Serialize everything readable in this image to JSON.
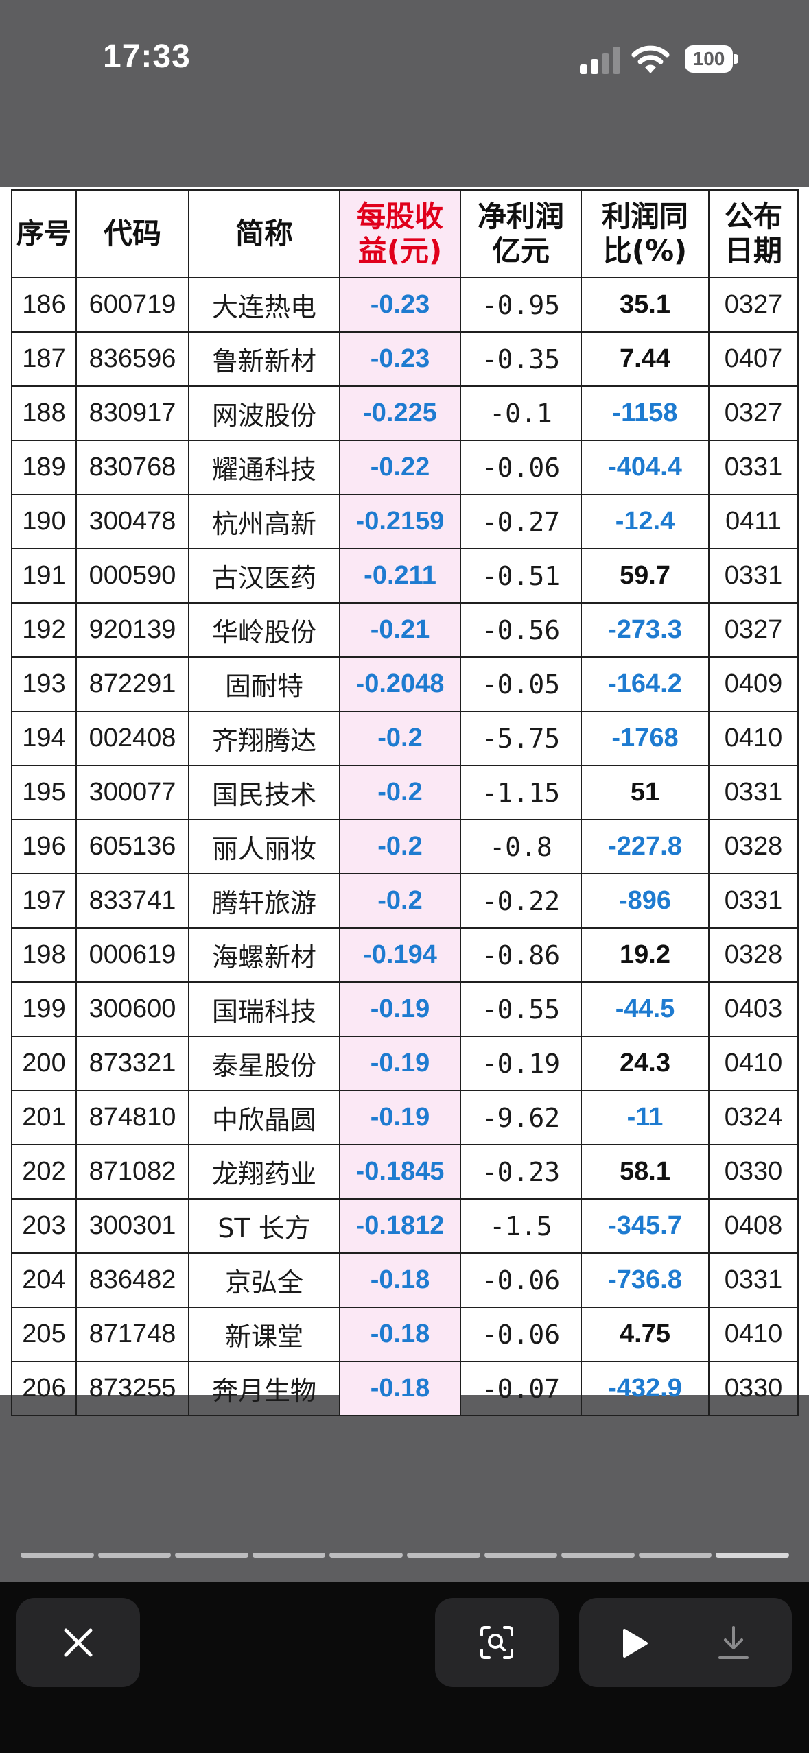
{
  "status_bar": {
    "time": "17:33",
    "battery_level": "100",
    "signal_bars_active": 2,
    "signal_bars_total": 4
  },
  "table": {
    "headers": [
      {
        "key": "seq",
        "label": "序号"
      },
      {
        "key": "code",
        "label": "代码"
      },
      {
        "key": "name",
        "label": "简称"
      },
      {
        "key": "eps",
        "label": "每股收益(元)"
      },
      {
        "key": "net_profit",
        "label": "净利润亿元"
      },
      {
        "key": "yoy",
        "label": "利润同比(%)"
      },
      {
        "key": "date",
        "label": "公布日期"
      }
    ],
    "rows": [
      {
        "seq": "186",
        "code": "600719",
        "name": "大连热电",
        "eps": "-0.23",
        "net_profit": "-0.95",
        "yoy": "35.1",
        "date": "0327"
      },
      {
        "seq": "187",
        "code": "836596",
        "name": "鲁新新材",
        "eps": "-0.23",
        "net_profit": "-0.35",
        "yoy": "7.44",
        "date": "0407"
      },
      {
        "seq": "188",
        "code": "830917",
        "name": "网波股份",
        "eps": "-0.225",
        "net_profit": "-0.1",
        "yoy": "-1158",
        "date": "0327"
      },
      {
        "seq": "189",
        "code": "830768",
        "name": "耀通科技",
        "eps": "-0.22",
        "net_profit": "-0.06",
        "yoy": "-404.4",
        "date": "0331"
      },
      {
        "seq": "190",
        "code": "300478",
        "name": "杭州高新",
        "eps": "-0.2159",
        "net_profit": "-0.27",
        "yoy": "-12.4",
        "date": "0411"
      },
      {
        "seq": "191",
        "code": "000590",
        "name": "古汉医药",
        "eps": "-0.211",
        "net_profit": "-0.51",
        "yoy": "59.7",
        "date": "0331"
      },
      {
        "seq": "192",
        "code": "920139",
        "name": "华岭股份",
        "eps": "-0.21",
        "net_profit": "-0.56",
        "yoy": "-273.3",
        "date": "0327"
      },
      {
        "seq": "193",
        "code": "872291",
        "name": "固耐特",
        "eps": "-0.2048",
        "net_profit": "-0.05",
        "yoy": "-164.2",
        "date": "0409"
      },
      {
        "seq": "194",
        "code": "002408",
        "name": "齐翔腾达",
        "eps": "-0.2",
        "net_profit": "-5.75",
        "yoy": "-1768",
        "date": "0410"
      },
      {
        "seq": "195",
        "code": "300077",
        "name": "国民技术",
        "eps": "-0.2",
        "net_profit": "-1.15",
        "yoy": "51",
        "date": "0331"
      },
      {
        "seq": "196",
        "code": "605136",
        "name": "丽人丽妆",
        "eps": "-0.2",
        "net_profit": "-0.8",
        "yoy": "-227.8",
        "date": "0328"
      },
      {
        "seq": "197",
        "code": "833741",
        "name": "腾轩旅游",
        "eps": "-0.2",
        "net_profit": "-0.22",
        "yoy": "-896",
        "date": "0331"
      },
      {
        "seq": "198",
        "code": "000619",
        "name": "海螺新材",
        "eps": "-0.194",
        "net_profit": "-0.86",
        "yoy": "19.2",
        "date": "0328"
      },
      {
        "seq": "199",
        "code": "300600",
        "name": "国瑞科技",
        "eps": "-0.19",
        "net_profit": "-0.55",
        "yoy": "-44.5",
        "date": "0403"
      },
      {
        "seq": "200",
        "code": "873321",
        "name": "泰星股份",
        "eps": "-0.19",
        "net_profit": "-0.19",
        "yoy": "24.3",
        "date": "0410"
      },
      {
        "seq": "201",
        "code": "874810",
        "name": "中欣晶圆",
        "eps": "-0.19",
        "net_profit": "-9.62",
        "yoy": "-11",
        "date": "0324"
      },
      {
        "seq": "202",
        "code": "871082",
        "name": "龙翔药业",
        "eps": "-0.1845",
        "net_profit": "-0.23",
        "yoy": "58.1",
        "date": "0330"
      },
      {
        "seq": "203",
        "code": "300301",
        "name": "ST 长方",
        "eps": "-0.1812",
        "net_profit": "-1.5",
        "yoy": "-345.7",
        "date": "0408"
      },
      {
        "seq": "204",
        "code": "836482",
        "name": "京弘全",
        "eps": "-0.18",
        "net_profit": "-0.06",
        "yoy": "-736.8",
        "date": "0331"
      },
      {
        "seq": "205",
        "code": "871748",
        "name": "新课堂",
        "eps": "-0.18",
        "net_profit": "-0.06",
        "yoy": "4.75",
        "date": "0410"
      },
      {
        "seq": "206",
        "code": "873255",
        "name": "奔月生物",
        "eps": "-0.18",
        "net_profit": "-0.07",
        "yoy": "-432.9",
        "date": "0330"
      }
    ]
  },
  "pager": {
    "segment_count": 10,
    "current_index": 9
  },
  "toolbar": {
    "close_icon": "close-icon",
    "lens_icon": "visual-lookup-icon",
    "play_icon": "play-icon",
    "download_icon": "download-icon"
  },
  "colors": {
    "negative_value": "#1e7bd0",
    "positive_value": "#111111",
    "eps_header": "#e0001b",
    "eps_column_bg": "#fbe8f5",
    "screen_bg": "#5e5e60",
    "toolbar_bg": "#0b0b0b"
  }
}
